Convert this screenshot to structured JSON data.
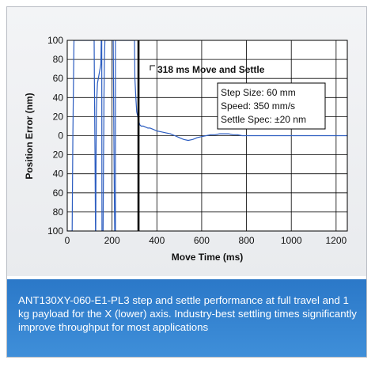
{
  "chart_data": {
    "type": "line",
    "title": "",
    "xlabel": "Move Time (ms)",
    "ylabel": "Position Error (nm)",
    "xlim": [
      0,
      1250
    ],
    "ylim": [
      -100,
      100
    ],
    "x_ticks": [
      0,
      200,
      400,
      600,
      800,
      1000,
      1200
    ],
    "x_tick_labels": [
      "0",
      "200",
      "400",
      "600",
      "800",
      "1000",
      "1200"
    ],
    "y_ticks": [
      100,
      80,
      60,
      40,
      20,
      0,
      -20,
      -40,
      -60,
      -80,
      -100
    ],
    "y_tick_labels": [
      "100",
      "80",
      "60",
      "40",
      "20",
      "0",
      "20",
      "40",
      "60",
      "80",
      "100"
    ],
    "grid": true,
    "series": [
      {
        "color": "#2b5cc0",
        "x": [
          0,
          22,
          25,
          30,
          33,
          120,
          121,
          122,
          123,
          124,
          125,
          126,
          127,
          128,
          129,
          130,
          132,
          135,
          150,
          152,
          154,
          155,
          156,
          158,
          160,
          161,
          162,
          163,
          164,
          165,
          166,
          167,
          168,
          178,
          190,
          200,
          205,
          210,
          212,
          213,
          214,
          215,
          215,
          216,
          222,
          230,
          232,
          234,
          235,
          300,
          302,
          306,
          310,
          315,
          320,
          325,
          330,
          340,
          350,
          360,
          370,
          380,
          400,
          420,
          440,
          460,
          480,
          500,
          520,
          540,
          560,
          580,
          600,
          620,
          640,
          660,
          680,
          700,
          720,
          740,
          760,
          780,
          800,
          850,
          900,
          950,
          1000,
          1050,
          1100,
          1150,
          1200,
          1250
        ],
        "y": [
          -100,
          -100,
          0,
          100,
          100,
          100,
          60,
          30,
          10,
          -20,
          -60,
          -100,
          -100,
          -60,
          -10,
          25,
          40,
          55,
          75,
          100,
          100,
          -100,
          -100,
          -100,
          -100,
          -60,
          -20,
          10,
          40,
          60,
          80,
          90,
          100,
          100,
          100,
          100,
          100,
          -60,
          -100,
          -100,
          -100,
          -100,
          100,
          100,
          100,
          100,
          100,
          100,
          100,
          100,
          60,
          40,
          25,
          20,
          14,
          11,
          10,
          10,
          9,
          8,
          8,
          7,
          5,
          4,
          3,
          2,
          0,
          -2,
          -4,
          -5,
          -4,
          -2,
          -1,
          0,
          1,
          1,
          2,
          2,
          2,
          1,
          1,
          0,
          0,
          0,
          0,
          0,
          0,
          0,
          0,
          0,
          0,
          0
        ]
      }
    ],
    "settle_marker": {
      "x": 318,
      "label": "318 ms Move and Settle"
    },
    "annotations": [
      "Step Size: 60 mm",
      "Speed: 350 mm/s",
      "Settle Spec: ±20 nm"
    ]
  },
  "caption": "ANT130XY-060-E1-PL3 step and settle performance at full travel and 1 kg payload for the X (lower) axis. Industry-best settling times significantly improve throughput for most applications",
  "colors": {
    "caption_bg": "#3184d1",
    "trace": "#2b5cc0",
    "marker": "#000000"
  }
}
